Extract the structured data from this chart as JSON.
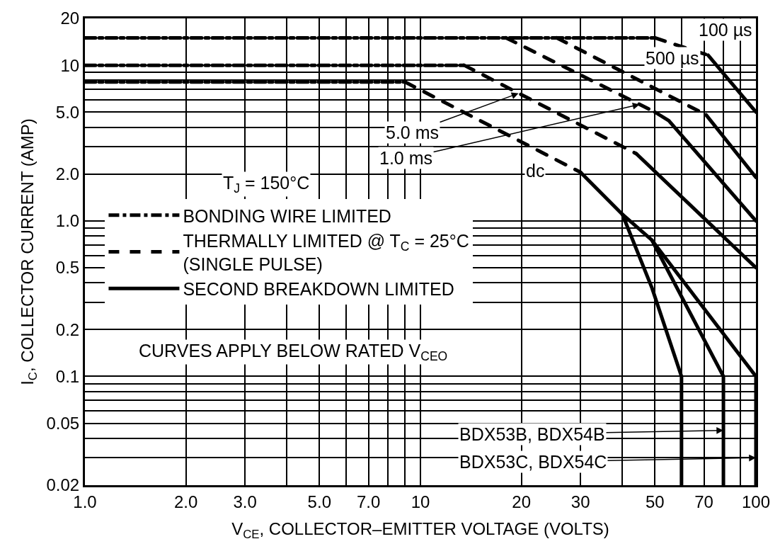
{
  "chart_data": {
    "type": "line",
    "xlabel": "V$_{CE}$, COLLECTOR–EMITTER VOLTAGE (VOLTS)",
    "ylabel": "I$_{C}$, COLLECTOR CURRENT (AMP)",
    "log": "xy",
    "grid": true,
    "legend": "center left",
    "marker": "none",
    "xlim": [
      1,
      100
    ],
    "ylim": [
      0.02,
      20
    ],
    "xticks": [
      {
        "value": 1,
        "label": "1.0"
      },
      {
        "value": 2,
        "label": "2.0"
      },
      {
        "value": 3,
        "label": "3.0"
      },
      {
        "value": 5,
        "label": "5.0"
      },
      {
        "value": 7,
        "label": "7.0"
      },
      10,
      20,
      30,
      50,
      70,
      100
    ],
    "yticks": [
      0.02,
      0.05,
      0.1,
      0.2,
      0.5,
      {
        "value": 1,
        "label": "1.0"
      },
      {
        "value": 2,
        "label": "2.0"
      },
      {
        "value": 5,
        "label": "5.0"
      },
      10,
      20
    ],
    "series": [
      {
        "name": "BONDING WIRE LIMITED",
        "color": "#000000",
        "line_style": "dashdot",
        "x": [
          1,
          50,
          null,
          1,
          13.5,
          null,
          1,
          9
        ],
        "values": [
          15,
          15,
          null,
          10,
          10,
          null,
          7.8,
          7.8
        ]
      },
      {
        "name": "THERMALLY LIMITED @ T$_{C}$ = 25°C\n(SINGLE PULSE)",
        "color": "#000000",
        "line_style": "dashed",
        "x": [
          50,
          72,
          null,
          25.5,
          71,
          null,
          18,
          50,
          null,
          13.5,
          44,
          null,
          9,
          30
        ],
        "values": [
          15,
          11.6,
          null,
          15,
          4.8,
          null,
          15,
          5,
          null,
          10,
          2.7,
          null,
          7.8,
          2.05
        ]
      },
      {
        "name": "SECOND BREAKDOWN LIMITED",
        "color": "#000000",
        "line_style": "solid",
        "x": [
          72,
          100,
          null,
          71,
          100,
          null,
          50,
          55,
          100,
          null,
          44,
          100,
          null,
          30,
          40,
          49,
          100,
          100,
          null,
          40,
          49,
          60,
          60,
          null,
          49,
          80,
          80
        ],
        "values": [
          11.6,
          5,
          null,
          4.8,
          1.9,
          null,
          5,
          4.4,
          1.0,
          null,
          2.7,
          0.5,
          null,
          2.05,
          1.1,
          0.75,
          0.1,
          0.02,
          null,
          1.1,
          0.37,
          0.1,
          0.02,
          null,
          0.75,
          0.1,
          0.02
        ]
      }
    ],
    "annotations": [
      "100 µs",
      "500 µs",
      {
        "text": "5.0 ms",
        "x": 19.6,
        "y": 6.6
      },
      {
        "text": "1.0 ms",
        "x": 45,
        "y": 5.6
      },
      {
        "text": "dc",
        "x": 22,
        "y": 2.1
      },
      "T$_{J}$ = 150°C",
      "CURVES APPLY BELOW RATED V$_{CEO}$",
      {
        "text": "BDX53B, BDX54B",
        "x": 80,
        "y": 0.045
      },
      {
        "text": "BDX53C, BDX54C",
        "x": 100,
        "y": 0.03
      }
    ]
  }
}
